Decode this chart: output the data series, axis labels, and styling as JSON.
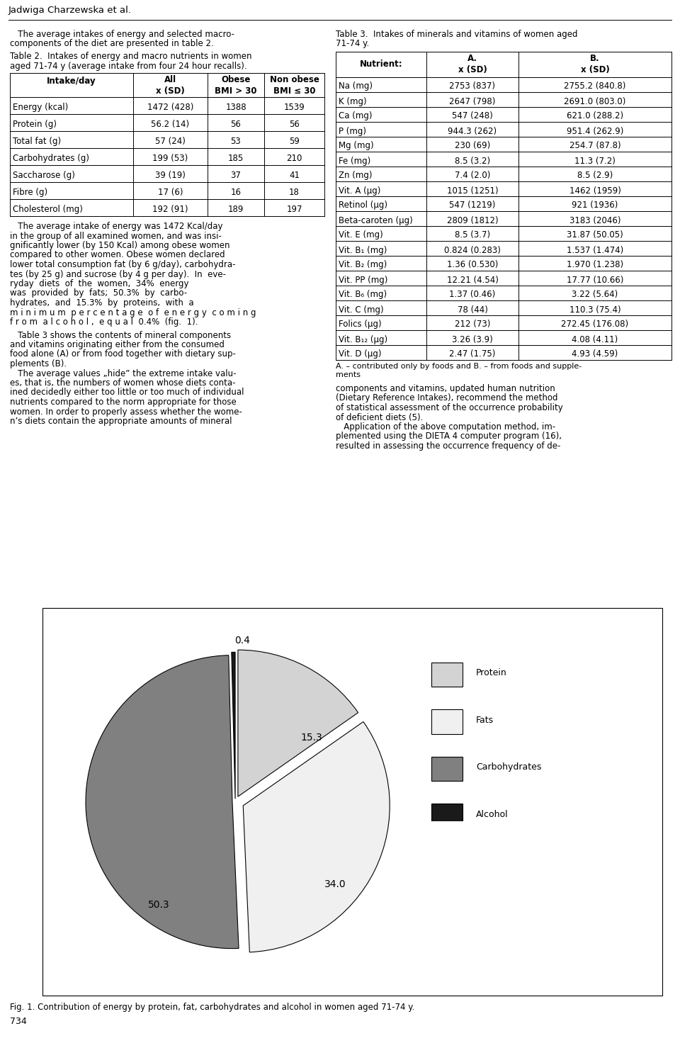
{
  "title_author": "Jadwiga Charzewska et al.",
  "page_number": "734",
  "table2_headers": [
    "Intake/day",
    "All\nx (SD)",
    "Obese\nBMI > 30",
    "Non obese\nBMI ≤ 30"
  ],
  "table2_rows": [
    [
      "Energy (kcal)",
      "1472 (428)",
      "1388",
      "1539"
    ],
    [
      "Protein (g)",
      "56.2 (14)",
      "56",
      "56"
    ],
    [
      "Total fat (g)",
      "57 (24)",
      "53",
      "59"
    ],
    [
      "Carbohydrates (g)",
      "199 (53)",
      "185",
      "210"
    ],
    [
      "Saccharose (g)",
      "39 (19)",
      "37",
      "41"
    ],
    [
      "Fibre (g)",
      "17 (6)",
      "16",
      "18"
    ],
    [
      "Cholesterol (mg)",
      "192 (91)",
      "189",
      "197"
    ]
  ],
  "table3_rows": [
    [
      "Na (mg)",
      "2753 (837)",
      "2755.2 (840.8)"
    ],
    [
      "K (mg)",
      "2647 (798)",
      "2691.0 (803.0)"
    ],
    [
      "Ca (mg)",
      "547 (248)",
      "621.0 (288.2)"
    ],
    [
      "P (mg)",
      "944.3 (262)",
      "951.4 (262.9)"
    ],
    [
      "Mg (mg)",
      "230 (69)",
      "254.7 (87.8)"
    ],
    [
      "Fe (mg)",
      "8.5 (3.2)",
      "11.3 (7.2)"
    ],
    [
      "Zn (mg)",
      "7.4 (2.0)",
      "8.5 (2.9)"
    ],
    [
      "Vit. A (μg)",
      "1015 (1251)",
      "1462 (1959)"
    ],
    [
      "Retinol (μg)",
      "547 (1219)",
      "921 (1936)"
    ],
    [
      "Beta-caroten (μg)",
      "2809 (1812)",
      "3183 (2046)"
    ],
    [
      "Vit. E (mg)",
      "8.5 (3.7)",
      "31.87 (50.05)"
    ],
    [
      "Vit. B₁ (mg)",
      "0.824 (0.283)",
      "1.537 (1.474)"
    ],
    [
      "Vit. B₂ (mg)",
      "1.36 (0.530)",
      "1.970 (1.238)"
    ],
    [
      "Vit. PP (mg)",
      "12.21 (4.54)",
      "17.77 (10.66)"
    ],
    [
      "Vit. B₆ (mg)",
      "1.37 (0.46)",
      "3.22 (5.64)"
    ],
    [
      "Vit. C (mg)",
      "78 (44)",
      "110.3 (75.4)"
    ],
    [
      "Folics (μg)",
      "212 (73)",
      "272.45 (176.08)"
    ],
    [
      "Vit. B₁₂ (μg)",
      "3.26 (3.9)",
      "4.08 (4.11)"
    ],
    [
      "Vit. D (μg)",
      "2.47 (1.75)",
      "4.93 (4.59)"
    ]
  ],
  "table3_footnote": "A. – contributed only by foods and B. – from foods and supple-\nments",
  "pie_values": [
    15.3,
    34.0,
    50.3,
    0.4
  ],
  "pie_legend": [
    "Protein",
    "Fats",
    "Carbohydrates",
    "Alcohol"
  ],
  "pie_colors": [
    "#d3d3d3",
    "#f0f0f0",
    "#808080",
    "#1a1a1a"
  ],
  "pie_edge_color": "#000000",
  "fig_caption": "Fig. 1. Contribution of energy by protein, fat, carbohydrates and alcohol in women aged 71-74 y.",
  "background_color": "#ffffff",
  "left_text3_lines": [
    "   The average intake of energy was 1472 Kcal/day",
    "in the group of all examined women, and was insi-",
    "gnificantly lower (by 150 Kcal) among obese women",
    "compared to other women. Obese women declared",
    "lower total consumption fat (by 6 g/day), carbohydra-",
    "tes (by 25 g) and sucrose (by 4 g per day).  In  eve-",
    "ryday  diets  of  the  women,  34%  energy",
    "was  provided  by  fats;  50.3%  by  carbo-",
    "hydrates,  and  15.3%  by  proteins,  with  a",
    "m i n i m u m  p e r c e n t a g e  o f  e n e r g y  c o m i n g",
    "f r o m  a l c o h o l ,  e q u a l  0.4%  (fig.  1)."
  ],
  "left_text4_lines": [
    "   Table 3 shows the contents of mineral components",
    "and vitamins originating either from the consumed",
    "food alone (A) or from food together with dietary sup-",
    "plements (B).",
    "   The average values „hide” the extreme intake valu-",
    "es, that is, the numbers of women whose diets conta-",
    "ined decidedly either too little or too much of individual",
    "nutrients compared to the norm appropriate for those",
    "women. In order to properly assess whether the wome-",
    "n’s diets contain the appropriate amounts of mineral"
  ],
  "right_text2_lines": [
    "components and vitamins, updated human nutrition",
    "(Dietary Reference Intakes), recommend the method",
    "of statistical assessment of the occurrence probability",
    "of deficient diets (5).",
    "   Application of the above computation method, im-",
    "plemented using the DIETA 4 computer program (16),",
    "resulted in assessing the occurrence frequency of de-"
  ]
}
